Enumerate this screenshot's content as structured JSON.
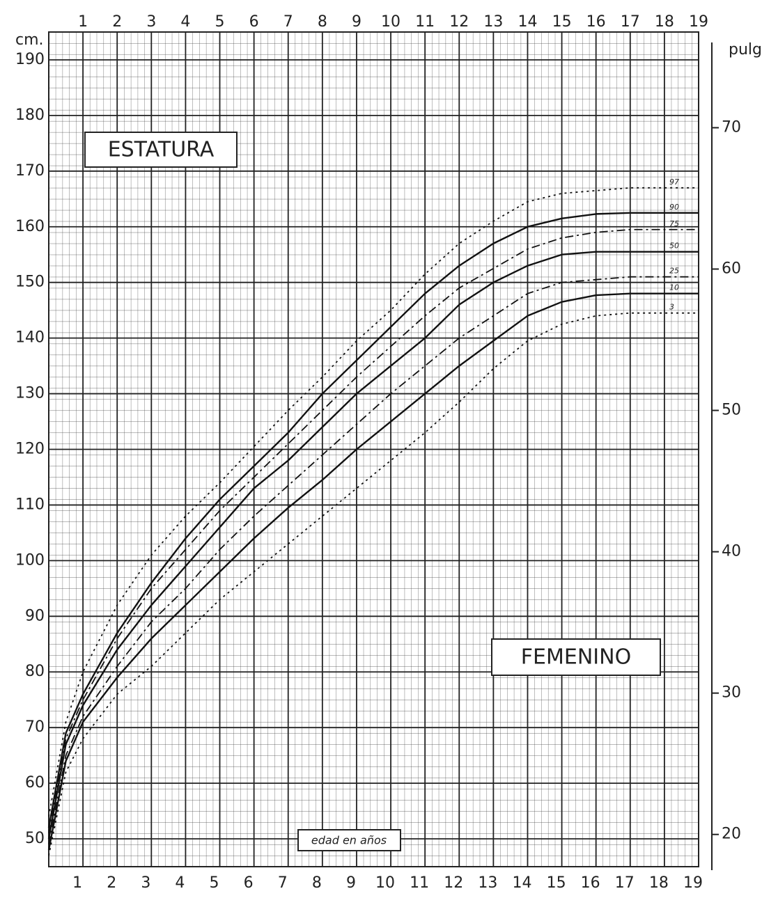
{
  "chart_data": {
    "type": "line",
    "y_label": "cm.",
    "y2_label": "pulg",
    "title": "ESTATURA",
    "subtitle": "FEMENINO",
    "x_label": "edad en años",
    "x": [
      0,
      0.5,
      1,
      2,
      3,
      4,
      5,
      6,
      7,
      8,
      9,
      10,
      11,
      12,
      13,
      14,
      15,
      16,
      17,
      18,
      19
    ],
    "xlim": [
      0,
      19
    ],
    "xticks": [
      1,
      2,
      3,
      4,
      5,
      6,
      7,
      8,
      9,
      10,
      11,
      12,
      13,
      14,
      15,
      16,
      17,
      18,
      19
    ],
    "ylim": [
      45,
      195
    ],
    "yticks": [
      50,
      60,
      70,
      80,
      90,
      100,
      110,
      120,
      130,
      140,
      150,
      160,
      170,
      180,
      190
    ],
    "y2lim": [
      17.72,
      76.77
    ],
    "y2ticks": [
      20,
      30,
      40,
      50,
      60,
      70
    ],
    "grid": true,
    "series": [
      {
        "name": "97",
        "color": "#111",
        "dash": "dotted",
        "values": [
          54,
          71,
          80,
          92,
          101,
          108,
          114,
          120.5,
          127,
          133,
          139.5,
          145,
          151.5,
          157,
          161,
          164.5,
          166,
          166.5,
          167,
          167,
          167
        ]
      },
      {
        "name": "90",
        "color": "#111",
        "dash": "solid",
        "values": [
          52,
          69,
          76,
          87,
          96,
          104,
          111,
          117,
          123,
          130,
          136,
          142,
          148,
          153,
          157,
          160,
          161.5,
          162.3,
          162.5,
          162.5,
          162.5
        ]
      },
      {
        "name": "75",
        "color": "#111",
        "dash": "dash-dot",
        "values": [
          51,
          68,
          75,
          86,
          95,
          102,
          109,
          115,
          121,
          127,
          133,
          138.5,
          144,
          149,
          152.5,
          156,
          158,
          159,
          159.5,
          159.5,
          159.5
        ]
      },
      {
        "name": "50",
        "color": "#111",
        "dash": "solid",
        "values": [
          50,
          67,
          74,
          84,
          92,
          99,
          106,
          113,
          118,
          124,
          130,
          135,
          140,
          146,
          150,
          153,
          155,
          155.5,
          155.5,
          155.5,
          155.5
        ]
      },
      {
        "name": "25",
        "color": "#111",
        "dash": "dash-dot",
        "values": [
          49,
          65,
          72,
          81,
          89,
          95,
          102,
          108,
          113.5,
          119,
          124.5,
          130,
          135,
          140,
          144,
          148,
          150,
          150.5,
          151,
          151,
          151
        ]
      },
      {
        "name": "10",
        "color": "#111",
        "dash": "solid",
        "values": [
          48,
          64,
          71,
          79,
          86,
          92,
          98,
          104,
          109.5,
          114.5,
          120,
          125,
          130,
          135,
          139.5,
          144,
          146.5,
          147.7,
          148,
          148,
          148
        ]
      },
      {
        "name": "3",
        "color": "#111",
        "dash": "dotted",
        "values": [
          47,
          62,
          68,
          76,
          81,
          87,
          93,
          98,
          103,
          108,
          113,
          118,
          123,
          128.5,
          134.5,
          139.5,
          142.5,
          144,
          144.5,
          144.5,
          144.5
        ]
      }
    ]
  }
}
